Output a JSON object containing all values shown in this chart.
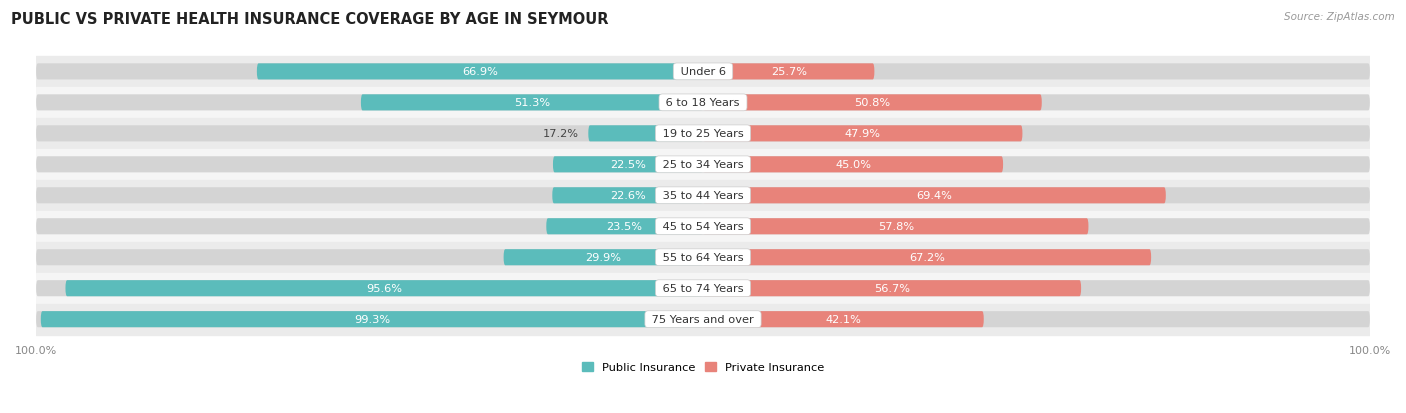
{
  "title": "PUBLIC VS PRIVATE HEALTH INSURANCE COVERAGE BY AGE IN SEYMOUR",
  "source": "Source: ZipAtlas.com",
  "categories": [
    "Under 6",
    "6 to 18 Years",
    "19 to 25 Years",
    "25 to 34 Years",
    "35 to 44 Years",
    "45 to 54 Years",
    "55 to 64 Years",
    "65 to 74 Years",
    "75 Years and over"
  ],
  "public_values": [
    66.9,
    51.3,
    17.2,
    22.5,
    22.6,
    23.5,
    29.9,
    95.6,
    99.3
  ],
  "private_values": [
    25.7,
    50.8,
    47.9,
    45.0,
    69.4,
    57.8,
    67.2,
    56.7,
    42.1
  ],
  "public_color": "#5bbcbb",
  "private_color": "#e8837a",
  "row_bg_even": "#ebebeb",
  "row_bg_odd": "#f5f5f5",
  "bar_height": 0.52,
  "title_fontsize": 10.5,
  "label_fontsize": 8.2,
  "tick_fontsize": 8,
  "value_inside_color": "#ffffff",
  "value_outside_color": "#444444",
  "cat_label_color": "#333333",
  "title_color": "#222222",
  "source_color": "#999999"
}
